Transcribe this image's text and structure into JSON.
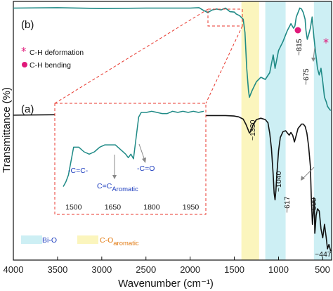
{
  "chart_data": {
    "type": "line",
    "xlabel": "Wavenumber (cm⁻¹)",
    "ylabel": "Transmittance (%)",
    "xlim": [
      4000,
      400
    ],
    "x_reversed": true,
    "x_ticks": [
      4000,
      3500,
      3000,
      2500,
      2000,
      1500,
      1000,
      500
    ],
    "panel_labels": [
      "(b)",
      "(a)"
    ],
    "colors": {
      "trace_b": "#1f8a86",
      "trace_a": "#111111",
      "band_bio": "#cdeff4",
      "band_co": "#fbf5bd",
      "marker": "#e0197a",
      "inset_border": "#e8372d",
      "arrow": "#888888"
    },
    "bands": [
      {
        "name": "Bi-O",
        "x_from": 1150,
        "x_to": 920,
        "color": "#cdeff4"
      },
      {
        "name": "Bi-O",
        "x_from": 600,
        "x_to": 400,
        "color": "#cdeff4"
      },
      {
        "name": "C-O aromatic",
        "x_from": 1420,
        "x_to": 1220,
        "color": "#fbf5bd"
      }
    ],
    "series": [
      {
        "name": "(b)",
        "x": [
          4000,
          3500,
          3000,
          2500,
          2000,
          1900,
          1850,
          1800,
          1750,
          1700,
          1650,
          1600,
          1550,
          1500,
          1480,
          1440,
          1400,
          1380,
          1360,
          1340,
          1330,
          1300,
          1250,
          1200,
          1150,
          1100,
          1060,
          1040,
          1000,
          950,
          900,
          860,
          830,
          815,
          800,
          780,
          760,
          740,
          720,
          700,
          690,
          675,
          660,
          640,
          620,
          600,
          580,
          560,
          540,
          520,
          500,
          480,
          460,
          447,
          430,
          410
        ],
        "y": [
          98.5,
          98.6,
          98.4,
          98.5,
          98.5,
          98.6,
          98.0,
          97.5,
          98.1,
          98.3,
          98.1,
          98.5,
          97.7,
          97.6,
          97.2,
          96.8,
          96.0,
          93.0,
          85.0,
          80.0,
          78.5,
          80.0,
          82.0,
          83.0,
          82.5,
          84.0,
          88.0,
          85.0,
          89.0,
          91.0,
          93.5,
          95.0,
          94.0,
          94.5,
          96.5,
          97.5,
          98.5,
          98.3,
          97.5,
          96.0,
          93.5,
          91.5,
          92.5,
          94.0,
          96.5,
          92.0,
          88.5,
          85.0,
          83.5,
          85.0,
          82.0,
          78.5,
          77.5,
          76.5,
          76.0,
          75.5
        ]
      },
      {
        "name": "(a)",
        "x": [
          4000,
          3500,
          3000,
          2500,
          2000,
          1800,
          1600,
          1500,
          1450,
          1400,
          1370,
          1350,
          1330,
          1310,
          1290,
          1250,
          1200,
          1150,
          1120,
          1100,
          1080,
          1060,
          1050,
          1040,
          1030,
          1020,
          1000,
          980,
          950,
          920,
          900,
          880,
          860,
          840,
          820,
          800,
          780,
          760,
          740,
          720,
          700,
          680,
          660,
          640,
          630,
          617,
          605,
          600,
          595,
          590,
          585,
          575,
          560,
          540,
          520,
          500,
          480,
          460,
          447,
          430,
          410
        ],
        "y": [
          74.5,
          74.6,
          74.5,
          74.6,
          74.5,
          74.4,
          74.4,
          74.3,
          74.1,
          73.6,
          72.5,
          71.5,
          70.5,
          71.0,
          72.2,
          73.5,
          73.8,
          73.5,
          72.8,
          70.5,
          67.0,
          61.0,
          57.0,
          55.5,
          57.5,
          61.0,
          66.5,
          69.5,
          70.8,
          71.0,
          70.5,
          70.0,
          70.6,
          70.0,
          68.5,
          70.0,
          71.5,
          72.0,
          72.5,
          72.5,
          72.0,
          70.5,
          67.5,
          63.0,
          56.0,
          50.0,
          53.0,
          56.0,
          54.5,
          48.0,
          49.0,
          52.0,
          53.5,
          53.0,
          49.0,
          47.0,
          50.0,
          47.0,
          44.5,
          45.5,
          44.0
        ]
      }
    ],
    "ylim": [
      42,
      100
    ],
    "peak_labels": [
      {
        "text": "~1330",
        "x": 1330,
        "series": "(a)"
      },
      {
        "text": "~1040",
        "x": 1040,
        "series": "(a)"
      },
      {
        "text": "~617",
        "x": 617,
        "series": "(a)"
      },
      {
        "text": "~590",
        "x": 590,
        "series": "(a)"
      },
      {
        "text": "~447",
        "x": 447,
        "series": "(a)"
      },
      {
        "text": "~815",
        "x": 815,
        "series": "(b)"
      },
      {
        "text": "~675",
        "x": 675,
        "series": "(b)"
      }
    ],
    "marker_legend": [
      {
        "symbol": "*",
        "label": "C-H deformation"
      },
      {
        "symbol": "●",
        "label": "C-H bending"
      }
    ],
    "band_legend": [
      {
        "label": "Bi-O",
        "sub": ""
      },
      {
        "label": "C-O",
        "sub": "aromatic"
      }
    ],
    "inset": {
      "type": "line",
      "x_ticks": [
        1500,
        1650,
        1800,
        1950
      ],
      "xlim": [
        1460,
        2000
      ],
      "x": [
        1460,
        1470,
        1480,
        1490,
        1500,
        1520,
        1540,
        1560,
        1580,
        1600,
        1620,
        1640,
        1650,
        1660,
        1680,
        1700,
        1710,
        1720,
        1730,
        1740,
        1750,
        1760,
        1780,
        1800,
        1820,
        1840,
        1860,
        1880,
        1900,
        1920,
        1940,
        1960,
        1980,
        2000
      ],
      "y": [
        30,
        34,
        40,
        52,
        64,
        64,
        60,
        58,
        60,
        64,
        66,
        66,
        66,
        66,
        62,
        58,
        55,
        58,
        54,
        72,
        90,
        94,
        94,
        95,
        94,
        93,
        93,
        95,
        94,
        95,
        94,
        95,
        94,
        95
      ],
      "ylim": [
        20,
        100
      ],
      "annotations": [
        {
          "text": "-C=C-",
          "sub": ""
        },
        {
          "text": "C=C",
          "sub": "Aromatic"
        },
        {
          "text": "-C=O",
          "sub": ""
        }
      ]
    }
  }
}
